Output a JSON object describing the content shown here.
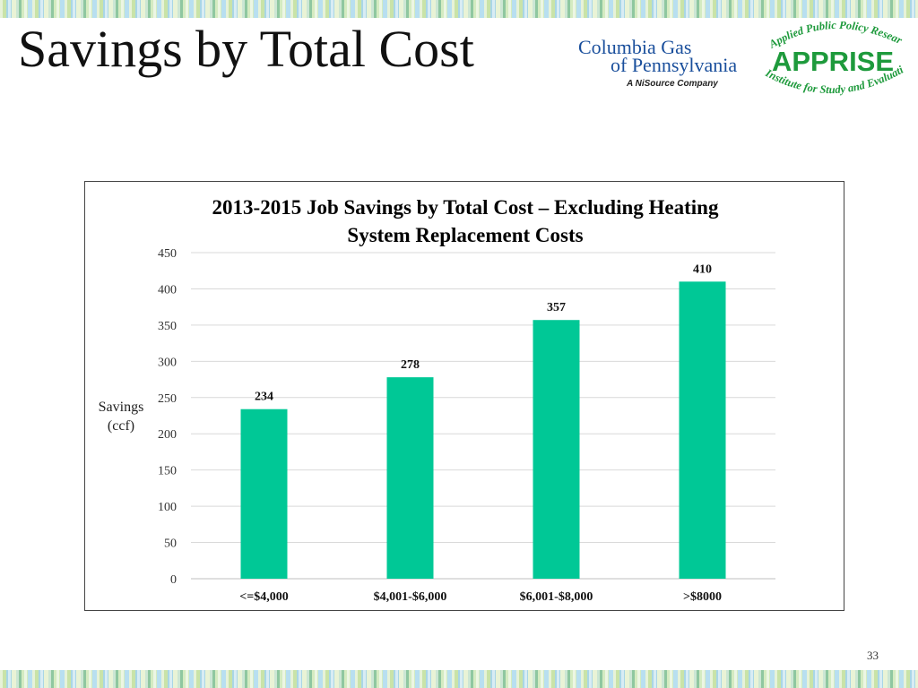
{
  "slide": {
    "title": "Savings by Total Cost",
    "page_number": "33"
  },
  "logos": {
    "columbia": {
      "line1": "Columbia Gas",
      "line2": "of Pennsylvania",
      "line3": "A NiSource Company",
      "color": "#1a4f9c"
    },
    "apprise": {
      "top_text": "Applied Public Policy Research",
      "main_text": "APPRISE",
      "bottom_text": "Institute for Study and Evaluation",
      "color": "#1e9a3c"
    }
  },
  "chart_data": {
    "type": "bar",
    "title": "2013-2015 Job Savings by Total Cost – Excluding Heating System Replacement Costs",
    "title_lines": [
      "2013-2015 Job Savings by Total Cost – Excluding Heating",
      "System Replacement Costs"
    ],
    "ylabel": "Savings (ccf)",
    "ylabel_lines": [
      "Savings",
      "(ccf)"
    ],
    "xlabel": "",
    "categories": [
      "<=$4,000",
      "$4,001-$6,000",
      "$6,001-$8,000",
      ">$8000"
    ],
    "values": [
      234,
      278,
      357,
      410
    ],
    "data_labels": [
      "234",
      "278",
      "357",
      "410"
    ],
    "ylim": [
      0,
      450
    ],
    "yticks": [
      0,
      50,
      100,
      150,
      200,
      250,
      300,
      350,
      400,
      450
    ],
    "ytick_labels": [
      "0",
      "50",
      "100",
      "150",
      "200",
      "250",
      "300",
      "350",
      "400",
      "450"
    ],
    "bar_color": "#00c896",
    "grid": true,
    "legend": "none"
  }
}
